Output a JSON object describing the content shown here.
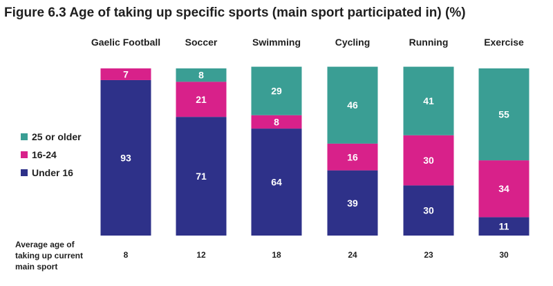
{
  "chart_data": {
    "type": "bar",
    "stacked": true,
    "title": "Figure 6.3 Age of taking up specific sports (main sport participated in) (%)",
    "categories": [
      "Gaelic Football",
      "Soccer",
      "Swimming",
      "Cycling",
      "Running",
      "Exercise"
    ],
    "series": [
      {
        "name": "Under 16",
        "color": "#2e3189",
        "values": [
          93,
          71,
          64,
          39,
          30,
          11
        ]
      },
      {
        "name": "16-24",
        "color": "#d8218a",
        "values": [
          7,
          21,
          8,
          16,
          30,
          34
        ]
      },
      {
        "name": "25 or older",
        "color": "#3a9e94",
        "values": [
          0,
          8,
          29,
          46,
          41,
          55
        ]
      }
    ],
    "legend_order": [
      "25 or older",
      "16-24",
      "Under 16"
    ],
    "legend_position": "left",
    "ylim": [
      0,
      100
    ],
    "footer": {
      "label_lines": [
        "Average age of",
        "taking up current",
        "main sport"
      ],
      "values": [
        "8",
        "12",
        "18",
        "24",
        "23",
        "30"
      ]
    }
  }
}
